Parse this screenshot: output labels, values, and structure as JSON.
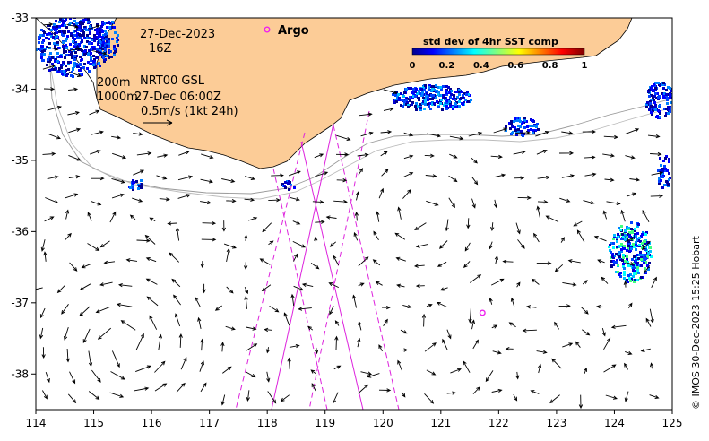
{
  "annotations": {
    "date": "27-Dec-2023",
    "hour": "16Z",
    "depth_shallow": "200m",
    "depth_deep": "1000m",
    "product": "NRT00 GSL",
    "valid_time": "27-Dec 06:00Z",
    "vector_scale": "0.5m/s (1kt 24h)",
    "argo_label": "Argo"
  },
  "colorbar": {
    "title": "std dev of 4hr SST comp",
    "ticks": [
      "0",
      "0.2",
      "0.4",
      "0.6",
      "0.8",
      "1"
    ]
  },
  "credit": "© IMOS 30-Dec-2023 15:25 Hobart",
  "axes": {
    "x_ticks": [
      "114",
      "115",
      "116",
      "117",
      "118",
      "119",
      "120",
      "121",
      "122",
      "123",
      "124",
      "125"
    ],
    "y_ticks": [
      "-33",
      "-34",
      "-35",
      "-36",
      "-37",
      "-38"
    ],
    "xlim": [
      114,
      125
    ],
    "ylim": [
      -38.5,
      -33
    ]
  },
  "colors": {
    "land": "#fccc97",
    "track": "#dd22dd",
    "argo": "#ee22ee",
    "isobath": "#999999",
    "coastline": "#000000"
  },
  "argo_float": {
    "lon": 121.72,
    "lat": -37.14
  }
}
